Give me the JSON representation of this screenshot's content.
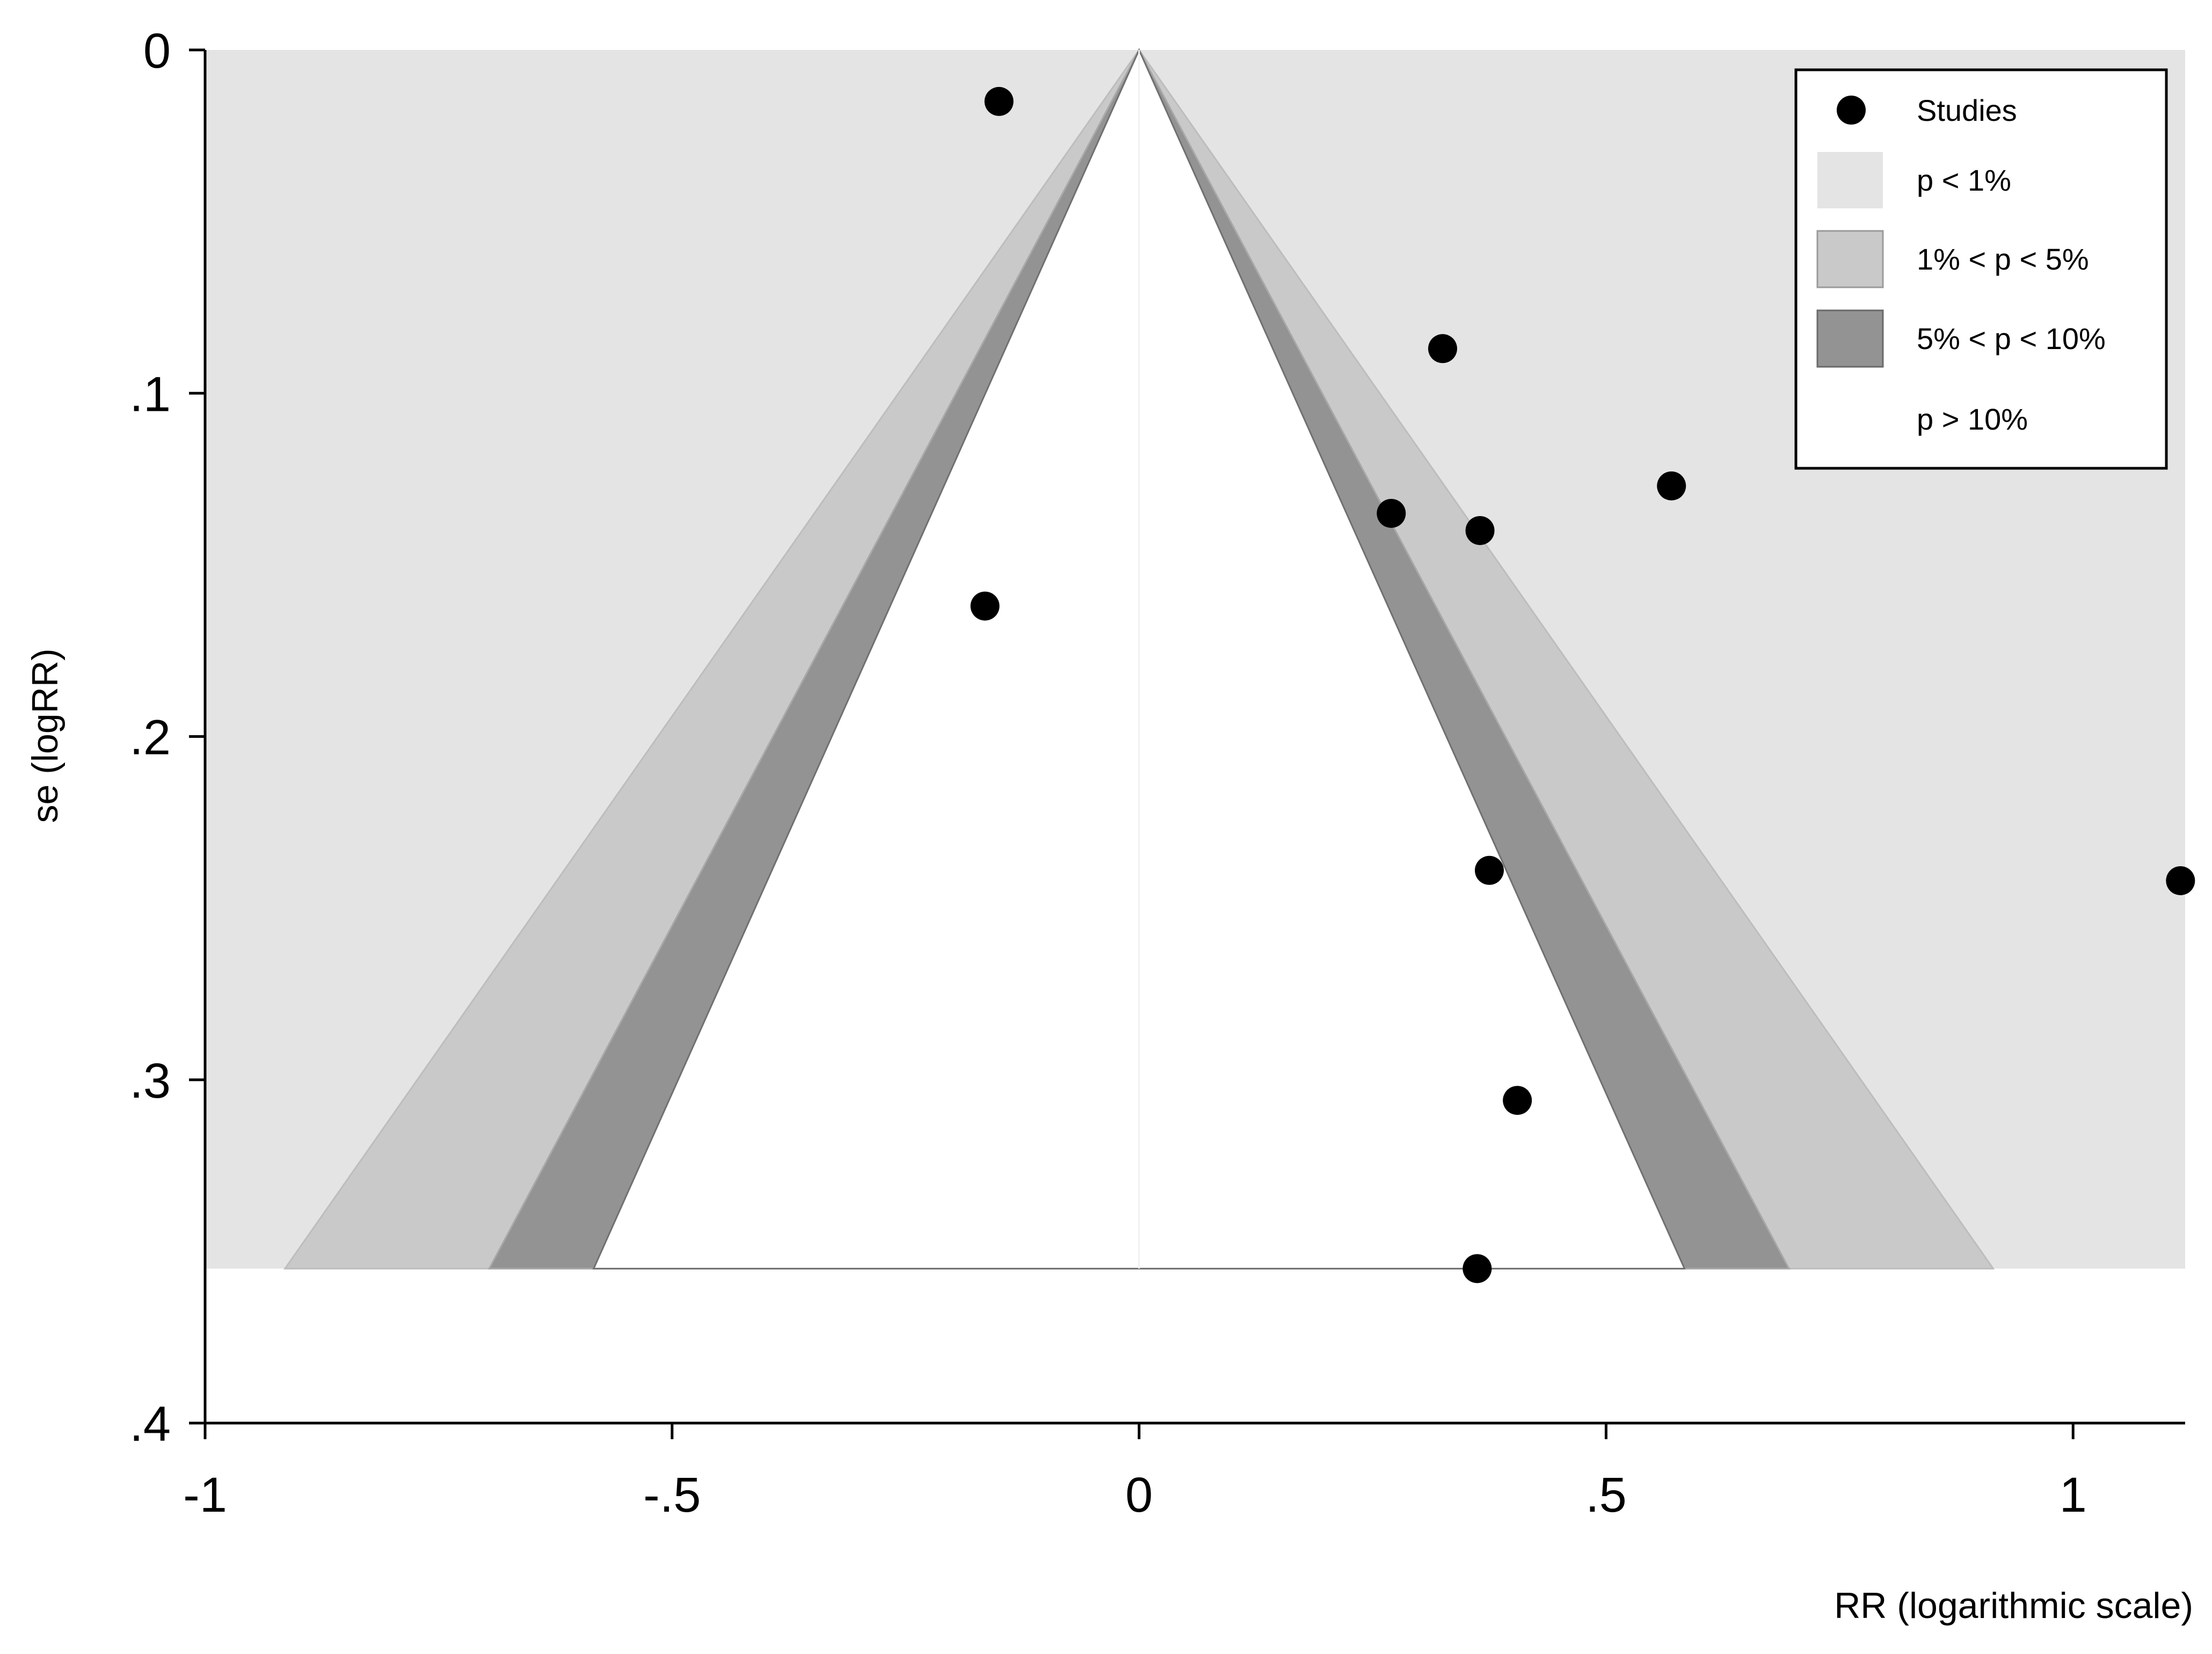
{
  "chart_data": {
    "type": "scatter",
    "subtype": "contour-enhanced funnel plot",
    "xlabel": "RR (logarithmic scale)",
    "ylabel": "se (logRR)",
    "xlim": [
      -1,
      1.12
    ],
    "ylim": [
      0,
      0.4
    ],
    "y_inverted": true,
    "x_ticks": [
      -1,
      -0.5,
      0,
      0.5,
      1
    ],
    "x_tick_labels": [
      "-1",
      "-.5",
      "0",
      ".5",
      "1"
    ],
    "y_ticks": [
      0,
      0.1,
      0.2,
      0.3,
      0.4
    ],
    "y_tick_labels": [
      "0",
      ".1",
      ".2",
      ".3",
      ".4"
    ],
    "center": 0,
    "se_max": 0.355,
    "contours": [
      {
        "label": "p < 1%",
        "z": 2.576,
        "color": "#e4e4e4"
      },
      {
        "label": "1% < p < 5%",
        "z": 1.96,
        "color": "#c9c9c9"
      },
      {
        "label": "5% < p < 10%",
        "z": 1.645,
        "color": "#939393"
      },
      {
        "label": "p > 10%",
        "color": "#ffffff"
      }
    ],
    "series": [
      {
        "name": "Studies",
        "points": [
          {
            "x": -0.15,
            "y": 0.015
          },
          {
            "x": 0.325,
            "y": 0.087
          },
          {
            "x": 0.57,
            "y": 0.127
          },
          {
            "x": 0.27,
            "y": 0.135
          },
          {
            "x": 0.365,
            "y": 0.14
          },
          {
            "x": -0.165,
            "y": 0.162
          },
          {
            "x": 0.375,
            "y": 0.239
          },
          {
            "x": 1.115,
            "y": 0.242
          },
          {
            "x": 0.405,
            "y": 0.306
          },
          {
            "x": 0.362,
            "y": 0.355
          }
        ]
      }
    ],
    "legend": {
      "position": "top-right",
      "entries": [
        {
          "label": "Studies",
          "symbol": "dot"
        },
        {
          "label": "p < 1%",
          "symbol": "box",
          "color": "#e4e4e4"
        },
        {
          "label": "1% < p < 5%",
          "symbol": "box",
          "color": "#c9c9c9"
        },
        {
          "label": "5% < p < 10%",
          "symbol": "box",
          "color": "#939393"
        },
        {
          "label": "p > 10%",
          "symbol": "none"
        }
      ]
    }
  }
}
